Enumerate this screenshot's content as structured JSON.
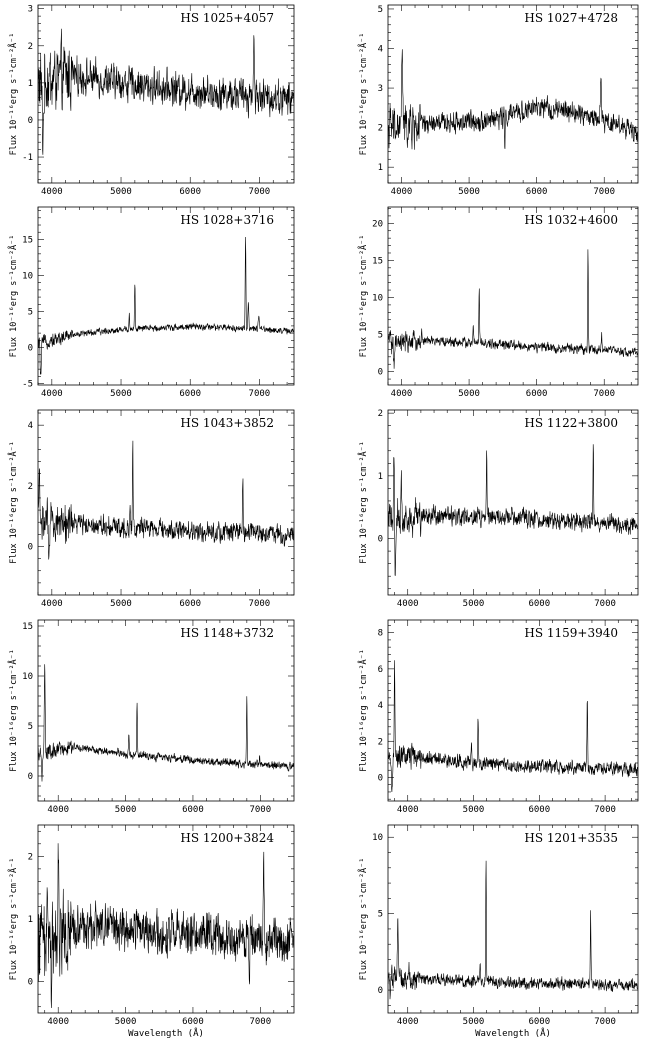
{
  "chart_data": [
    {
      "type": "line",
      "title": "HS 1025+4057",
      "ylabel": "Flux 10⁻¹⁶erg s⁻¹cm⁻²Å⁻¹",
      "xlabel": "",
      "xlim": [
        3800,
        7500
      ],
      "ylim": [
        -1.7,
        3.1
      ],
      "xticks": [
        4000,
        5000,
        6000,
        7000
      ],
      "yticks": [
        -1,
        0,
        1,
        2,
        3
      ],
      "continuum": [
        [
          3800,
          1.0
        ],
        [
          4300,
          1.2
        ],
        [
          5000,
          1.0
        ],
        [
          6000,
          0.8
        ],
        [
          7500,
          0.55
        ]
      ],
      "noise": 0.35,
      "lines": [
        [
          6920,
          1.5,
          14
        ]
      ],
      "absorptions": [
        [
          3870,
          -1.5,
          20
        ]
      ]
    },
    {
      "type": "line",
      "title": "HS 1027+4728",
      "ylabel": "Flux 10⁻¹⁶erg s⁻¹cm⁻²Å⁻¹",
      "xlabel": "",
      "xlim": [
        3800,
        7500
      ],
      "ylim": [
        0.6,
        5.1
      ],
      "xticks": [
        4000,
        5000,
        6000,
        7000
      ],
      "yticks": [
        1,
        2,
        3,
        4,
        5
      ],
      "continuum": [
        [
          3950,
          2.0
        ],
        [
          4500,
          2.1
        ],
        [
          5300,
          2.2
        ],
        [
          6000,
          2.5
        ],
        [
          6500,
          2.4
        ],
        [
          7200,
          2.1
        ],
        [
          7500,
          1.8
        ]
      ],
      "noise": 0.2,
      "lines": [
        [
          4010,
          2.0,
          16
        ],
        [
          6950,
          1.0,
          16
        ]
      ],
      "absorptions": [
        [
          5530,
          -0.9,
          10
        ]
      ]
    },
    {
      "type": "line",
      "title": "HS 1028+3716",
      "ylabel": "Flux 10⁻¹⁶erg s⁻¹cm⁻²Å⁻¹",
      "xlabel": "",
      "xlim": [
        3800,
        7500
      ],
      "ylim": [
        -5.2,
        19.5
      ],
      "xticks": [
        4000,
        5000,
        6000,
        7000
      ],
      "yticks": [
        -5,
        0,
        5,
        10,
        15
      ],
      "continuum": [
        [
          3800,
          0.5
        ],
        [
          4300,
          1.8
        ],
        [
          5000,
          2.5
        ],
        [
          6000,
          2.9
        ],
        [
          7000,
          2.6
        ],
        [
          7500,
          2.2
        ]
      ],
      "noise": 0.35,
      "lines": [
        [
          5120,
          2.0,
          10
        ],
        [
          5200,
          6.5,
          10
        ],
        [
          6800,
          12.8,
          10
        ],
        [
          6840,
          4.0,
          12
        ],
        [
          6990,
          1.5,
          14
        ]
      ],
      "absorptions": [
        [
          3840,
          -4.5,
          15
        ]
      ]
    },
    {
      "type": "line",
      "title": "HS 1032+4600",
      "ylabel": "Flux 10⁻¹⁶erg s⁻¹cm⁻²Å⁻¹",
      "xlabel": "",
      "xlim": [
        3800,
        7500
      ],
      "ylim": [
        -1.8,
        22.2
      ],
      "xticks": [
        4000,
        5000,
        6000,
        7000
      ],
      "yticks": [
        0,
        5,
        10,
        15,
        20
      ],
      "continuum": [
        [
          3800,
          3.5
        ],
        [
          4300,
          4.2
        ],
        [
          5000,
          3.9
        ],
        [
          6000,
          3.3
        ],
        [
          7000,
          2.9
        ],
        [
          7500,
          2.5
        ]
      ],
      "noise": 0.5,
      "lines": [
        [
          3830,
          2.5,
          16
        ],
        [
          5060,
          2.5,
          10
        ],
        [
          5150,
          7.3,
          10
        ],
        [
          6760,
          13.8,
          10
        ],
        [
          6960,
          2.2,
          14
        ]
      ],
      "absorptions": [
        [
          3890,
          -3.0,
          14
        ]
      ]
    },
    {
      "type": "line",
      "title": "HS 1043+3852",
      "ylabel": "Flux 10⁻¹⁶erg s⁻¹cm⁻²Å⁻¹",
      "xlabel": "",
      "xlim": [
        3800,
        7500
      ],
      "ylim": [
        -1.6,
        4.5
      ],
      "xticks": [
        4000,
        5000,
        6000,
        7000
      ],
      "yticks": [
        0,
        2,
        4
      ],
      "continuum": [
        [
          3800,
          0.8
        ],
        [
          4300,
          0.8
        ],
        [
          5000,
          0.65
        ],
        [
          6000,
          0.5
        ],
        [
          7000,
          0.45
        ],
        [
          7500,
          0.35
        ]
      ],
      "noise": 0.25,
      "lines": [
        [
          3820,
          1.5,
          16
        ],
        [
          5130,
          0.6,
          10
        ],
        [
          5170,
          2.9,
          10
        ],
        [
          6760,
          1.75,
          10
        ]
      ],
      "absorptions": [
        [
          3960,
          -1.6,
          14
        ]
      ]
    },
    {
      "type": "line",
      "title": "HS 1122+3800",
      "ylabel": "Flux 10⁻¹⁶erg s⁻¹cm⁻²Å⁻¹",
      "xlabel": "",
      "xlim": [
        3700,
        7500
      ],
      "ylim": [
        -0.9,
        2.05
      ],
      "xticks": [
        4000,
        5000,
        6000,
        7000
      ],
      "yticks": [
        0,
        1,
        2
      ],
      "continuum": [
        [
          3700,
          0.3
        ],
        [
          4300,
          0.38
        ],
        [
          5200,
          0.34
        ],
        [
          6000,
          0.3
        ],
        [
          7000,
          0.25
        ],
        [
          7500,
          0.2
        ]
      ],
      "noise": 0.11,
      "lines": [
        [
          3790,
          1.1,
          14
        ],
        [
          3900,
          0.5,
          14
        ],
        [
          5200,
          1.05,
          10
        ],
        [
          6820,
          1.25,
          10
        ]
      ],
      "absorptions": [
        [
          3810,
          -1.0,
          14
        ]
      ]
    },
    {
      "type": "line",
      "title": "HS 1148+3732",
      "ylabel": "Flux 10⁻¹⁶erg s⁻¹cm⁻²Å⁻¹",
      "xlabel": "",
      "xlim": [
        3700,
        7500
      ],
      "ylim": [
        -2.5,
        15.6
      ],
      "xticks": [
        4000,
        5000,
        6000,
        7000
      ],
      "yticks": [
        0,
        5,
        10,
        15
      ],
      "continuum": [
        [
          3700,
          2.0
        ],
        [
          4200,
          2.9
        ],
        [
          5000,
          2.2
        ],
        [
          6000,
          1.6
        ],
        [
          7000,
          1.1
        ],
        [
          7500,
          0.9
        ]
      ],
      "noise": 0.3,
      "lines": [
        [
          3800,
          9.5,
          12
        ],
        [
          5050,
          1.9,
          10
        ],
        [
          5170,
          5.3,
          10
        ],
        [
          6800,
          7.0,
          10
        ],
        [
          6990,
          0.8,
          14
        ]
      ],
      "absorptions": [
        [
          3760,
          -2.0,
          14
        ]
      ]
    },
    {
      "type": "line",
      "title": "HS 1159+3940",
      "ylabel": "Flux 10⁻¹⁶erg s⁻¹cm⁻²Å⁻¹",
      "xlabel": "",
      "xlim": [
        3700,
        7500
      ],
      "ylim": [
        -1.3,
        8.7
      ],
      "xticks": [
        4000,
        5000,
        6000,
        7000
      ],
      "yticks": [
        0,
        2,
        4,
        6,
        8
      ],
      "continuum": [
        [
          3700,
          0.8
        ],
        [
          4000,
          1.2
        ],
        [
          5000,
          0.8
        ],
        [
          6000,
          0.6
        ],
        [
          7000,
          0.5
        ],
        [
          7500,
          0.4
        ]
      ],
      "noise": 0.28,
      "lines": [
        [
          3800,
          5.8,
          12
        ],
        [
          4970,
          1.1,
          10
        ],
        [
          5070,
          2.6,
          10
        ],
        [
          6730,
          3.9,
          10
        ]
      ],
      "absorptions": [
        [
          3760,
          -1.6,
          14
        ]
      ]
    },
    {
      "type": "line",
      "title": "HS 1200+3824",
      "ylabel": "Flux 10⁻¹⁶erg s⁻¹cm⁻²Å⁻¹",
      "xlabel": "Wavelength (Å)",
      "xlim": [
        3700,
        7500
      ],
      "ylim": [
        -0.5,
        2.5
      ],
      "xticks": [
        4000,
        5000,
        6000,
        7000
      ],
      "yticks": [
        0,
        1,
        2
      ],
      "continuum": [
        [
          3700,
          0.8
        ],
        [
          4500,
          0.9
        ],
        [
          5500,
          0.8
        ],
        [
          6500,
          0.72
        ],
        [
          7500,
          0.62
        ]
      ],
      "noise": 0.26,
      "lines": [
        [
          4000,
          1.1,
          12
        ],
        [
          7050,
          1.3,
          14
        ]
      ],
      "absorptions": [
        [
          3900,
          -0.9,
          14
        ],
        [
          6840,
          -0.6,
          10
        ]
      ]
    },
    {
      "type": "line",
      "title": "HS 1201+3535",
      "ylabel": "Flux 10⁻¹⁶erg s⁻¹cm⁻²Å⁻¹",
      "xlabel": "Wavelength (Å)",
      "xlim": [
        3700,
        7500
      ],
      "ylim": [
        -1.5,
        10.8
      ],
      "xticks": [
        4000,
        5000,
        6000,
        7000
      ],
      "yticks": [
        0,
        5,
        10
      ],
      "continuum": [
        [
          3700,
          1.0
        ],
        [
          4200,
          0.8
        ],
        [
          5000,
          0.55
        ],
        [
          6000,
          0.45
        ],
        [
          7500,
          0.3
        ]
      ],
      "noise": 0.3,
      "lines": [
        [
          3850,
          4.2,
          12
        ],
        [
          5100,
          1.2,
          10
        ],
        [
          5190,
          8.0,
          10
        ],
        [
          6780,
          4.8,
          10
        ]
      ],
      "absorptions": [
        [
          3730,
          -1.3,
          14
        ]
      ]
    }
  ]
}
